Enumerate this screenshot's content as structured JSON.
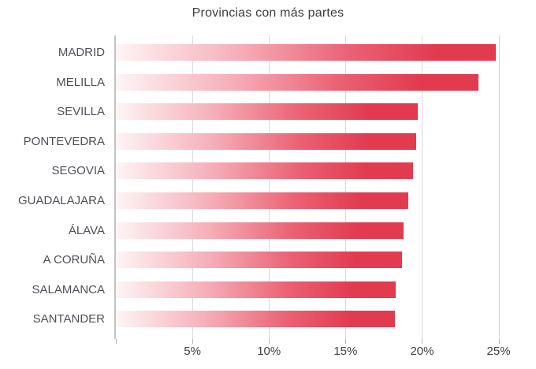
{
  "chart_data": {
    "type": "bar",
    "orientation": "horizontal",
    "title": "Provincias con más partes",
    "categories": [
      "MADRID",
      "MELILLA",
      "SEVILLA",
      "PONTEVEDRA",
      "SEGOVIA",
      "GUADALAJARA",
      "ÁLAVA",
      "A CORUÑA",
      "SALAMANCA",
      "SANTANDER"
    ],
    "values": [
      24.8,
      23.7,
      19.7,
      19.6,
      19.4,
      19.1,
      18.8,
      18.7,
      18.3,
      18.2
    ],
    "unit": "%",
    "xlabel": "",
    "ylabel": "",
    "xlim": [
      0,
      26
    ],
    "x_tick_values": [
      0,
      5,
      10,
      15,
      20,
      25
    ],
    "x_tick_labels": [
      "",
      "5%",
      "10%",
      "15%",
      "20%",
      "25%"
    ],
    "grid": "vertical-gridlines",
    "legend": "none",
    "colors": {
      "bar_gradient_stops": [
        [
          "#fdf5f5",
          "0%"
        ],
        [
          "#f6afb9",
          "32%"
        ],
        [
          "#ea6072",
          "62%"
        ],
        [
          "#e23b50",
          "84%"
        ],
        [
          "#e23b50",
          "100%"
        ]
      ],
      "gridline": "#d9d9d9",
      "axis_line": "#c3c3c3",
      "tick": "#b5b5b5",
      "title_text": "#3d3d3d",
      "category_text": "#4e5058",
      "tick_text": "#404040",
      "background": "#ffffff"
    }
  }
}
